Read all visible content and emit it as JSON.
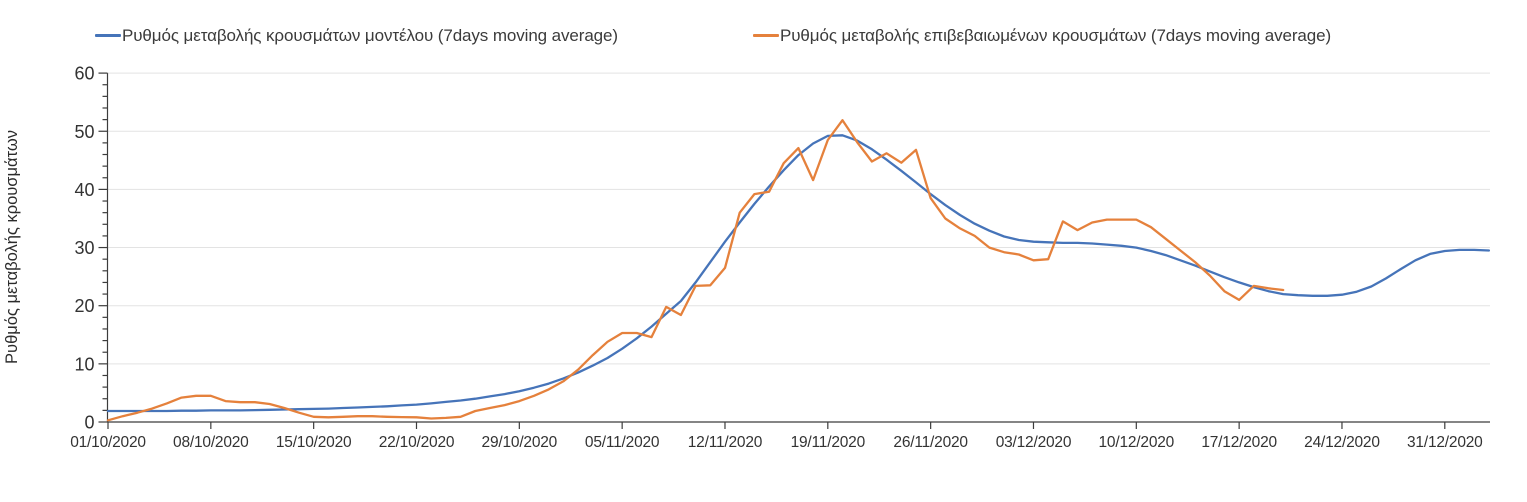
{
  "legend": {
    "items": [
      {
        "label": "Ρυθμός μεταβολής κρουσμάτων μοντέλου (7days moving average)",
        "color": "#4674b9"
      },
      {
        "label": "Ρυθμός μεταβολής επιβεβαιωμένων κρουσμάτων (7days moving average)",
        "color": "#e5813c"
      }
    ]
  },
  "chart_data": {
    "type": "line",
    "title": "",
    "xlabel": "",
    "ylabel": "Ρυθμός μεταβολής κρουσμάτων",
    "ylim": [
      0,
      60
    ],
    "yticks": [
      0,
      10,
      20,
      30,
      40,
      50,
      60
    ],
    "y_minor_tick_step": 2,
    "grid": "horizontal",
    "legend_position": "top",
    "x_tick_interval_days": 7,
    "x_tick_labels": [
      "01/10/2020",
      "08/10/2020",
      "15/10/2020",
      "22/10/2020",
      "29/10/2020",
      "05/11/2020",
      "12/11/2020",
      "19/11/2020",
      "26/11/2020",
      "03/12/2020",
      "10/12/2020",
      "17/12/2020",
      "24/12/2020",
      "31/12/2020"
    ],
    "x_start_date": "01/10/2020",
    "series": [
      {
        "name": "Ρυθμός μεταβολής κρουσμάτων μοντέλου (7days moving average)",
        "color": "#4674b9",
        "start_day": 0,
        "step_days": 1,
        "values": [
          1.9,
          1.9,
          1.9,
          1.9,
          1.9,
          1.95,
          1.95,
          2.0,
          2.0,
          2.0,
          2.05,
          2.1,
          2.15,
          2.2,
          2.25,
          2.3,
          2.4,
          2.5,
          2.6,
          2.7,
          2.85,
          3.0,
          3.2,
          3.45,
          3.7,
          4.0,
          4.4,
          4.8,
          5.3,
          5.9,
          6.6,
          7.5,
          8.5,
          9.7,
          11.0,
          12.6,
          14.4,
          16.4,
          18.6,
          20.8,
          24.0,
          27.5,
          31.0,
          34.3,
          37.5,
          40.5,
          43.3,
          45.9,
          47.9,
          49.2,
          49.3,
          48.4,
          46.9,
          45.1,
          43.2,
          41.2,
          39.2,
          37.3,
          35.6,
          34.1,
          32.9,
          31.9,
          31.3,
          31.0,
          30.9,
          30.8,
          30.8,
          30.7,
          30.5,
          30.3,
          30.0,
          29.4,
          28.7,
          27.8,
          26.9,
          25.9,
          24.9,
          24.0,
          23.2,
          22.5,
          22.0,
          21.8,
          21.7,
          21.7,
          21.9,
          22.4,
          23.3,
          24.7,
          26.3,
          27.8,
          28.9,
          29.4,
          29.6,
          29.6,
          29.5
        ]
      },
      {
        "name": "Ρυθμός μεταβολής επιβεβαιωμένων κρουσμάτων (7days moving average)",
        "color": "#e5813c",
        "start_day": 0,
        "step_days": 1,
        "values": [
          0.3,
          1.0,
          1.6,
          2.3,
          3.2,
          4.2,
          4.5,
          4.5,
          3.6,
          3.4,
          3.4,
          3.1,
          2.4,
          1.6,
          0.9,
          0.8,
          0.9,
          1.0,
          1.0,
          0.9,
          0.85,
          0.8,
          0.6,
          0.7,
          0.9,
          1.9,
          2.4,
          2.9,
          3.6,
          4.5,
          5.6,
          7.0,
          9.0,
          11.5,
          13.8,
          15.3,
          15.3,
          14.6,
          19.8,
          18.4,
          23.4,
          23.5,
          26.5,
          36.0,
          39.2,
          39.6,
          44.5,
          47.1,
          41.6,
          48.5,
          51.9,
          48.1,
          44.8,
          46.2,
          44.6,
          46.8,
          38.5,
          35.0,
          33.3,
          32.0,
          30.0,
          29.2,
          28.8,
          27.8,
          28.0,
          34.5,
          33.0,
          34.3,
          34.8,
          34.8,
          34.8,
          33.5,
          31.5,
          29.5,
          27.5,
          25.2,
          22.5,
          21.0,
          23.4,
          23.0,
          22.7
        ]
      }
    ]
  }
}
